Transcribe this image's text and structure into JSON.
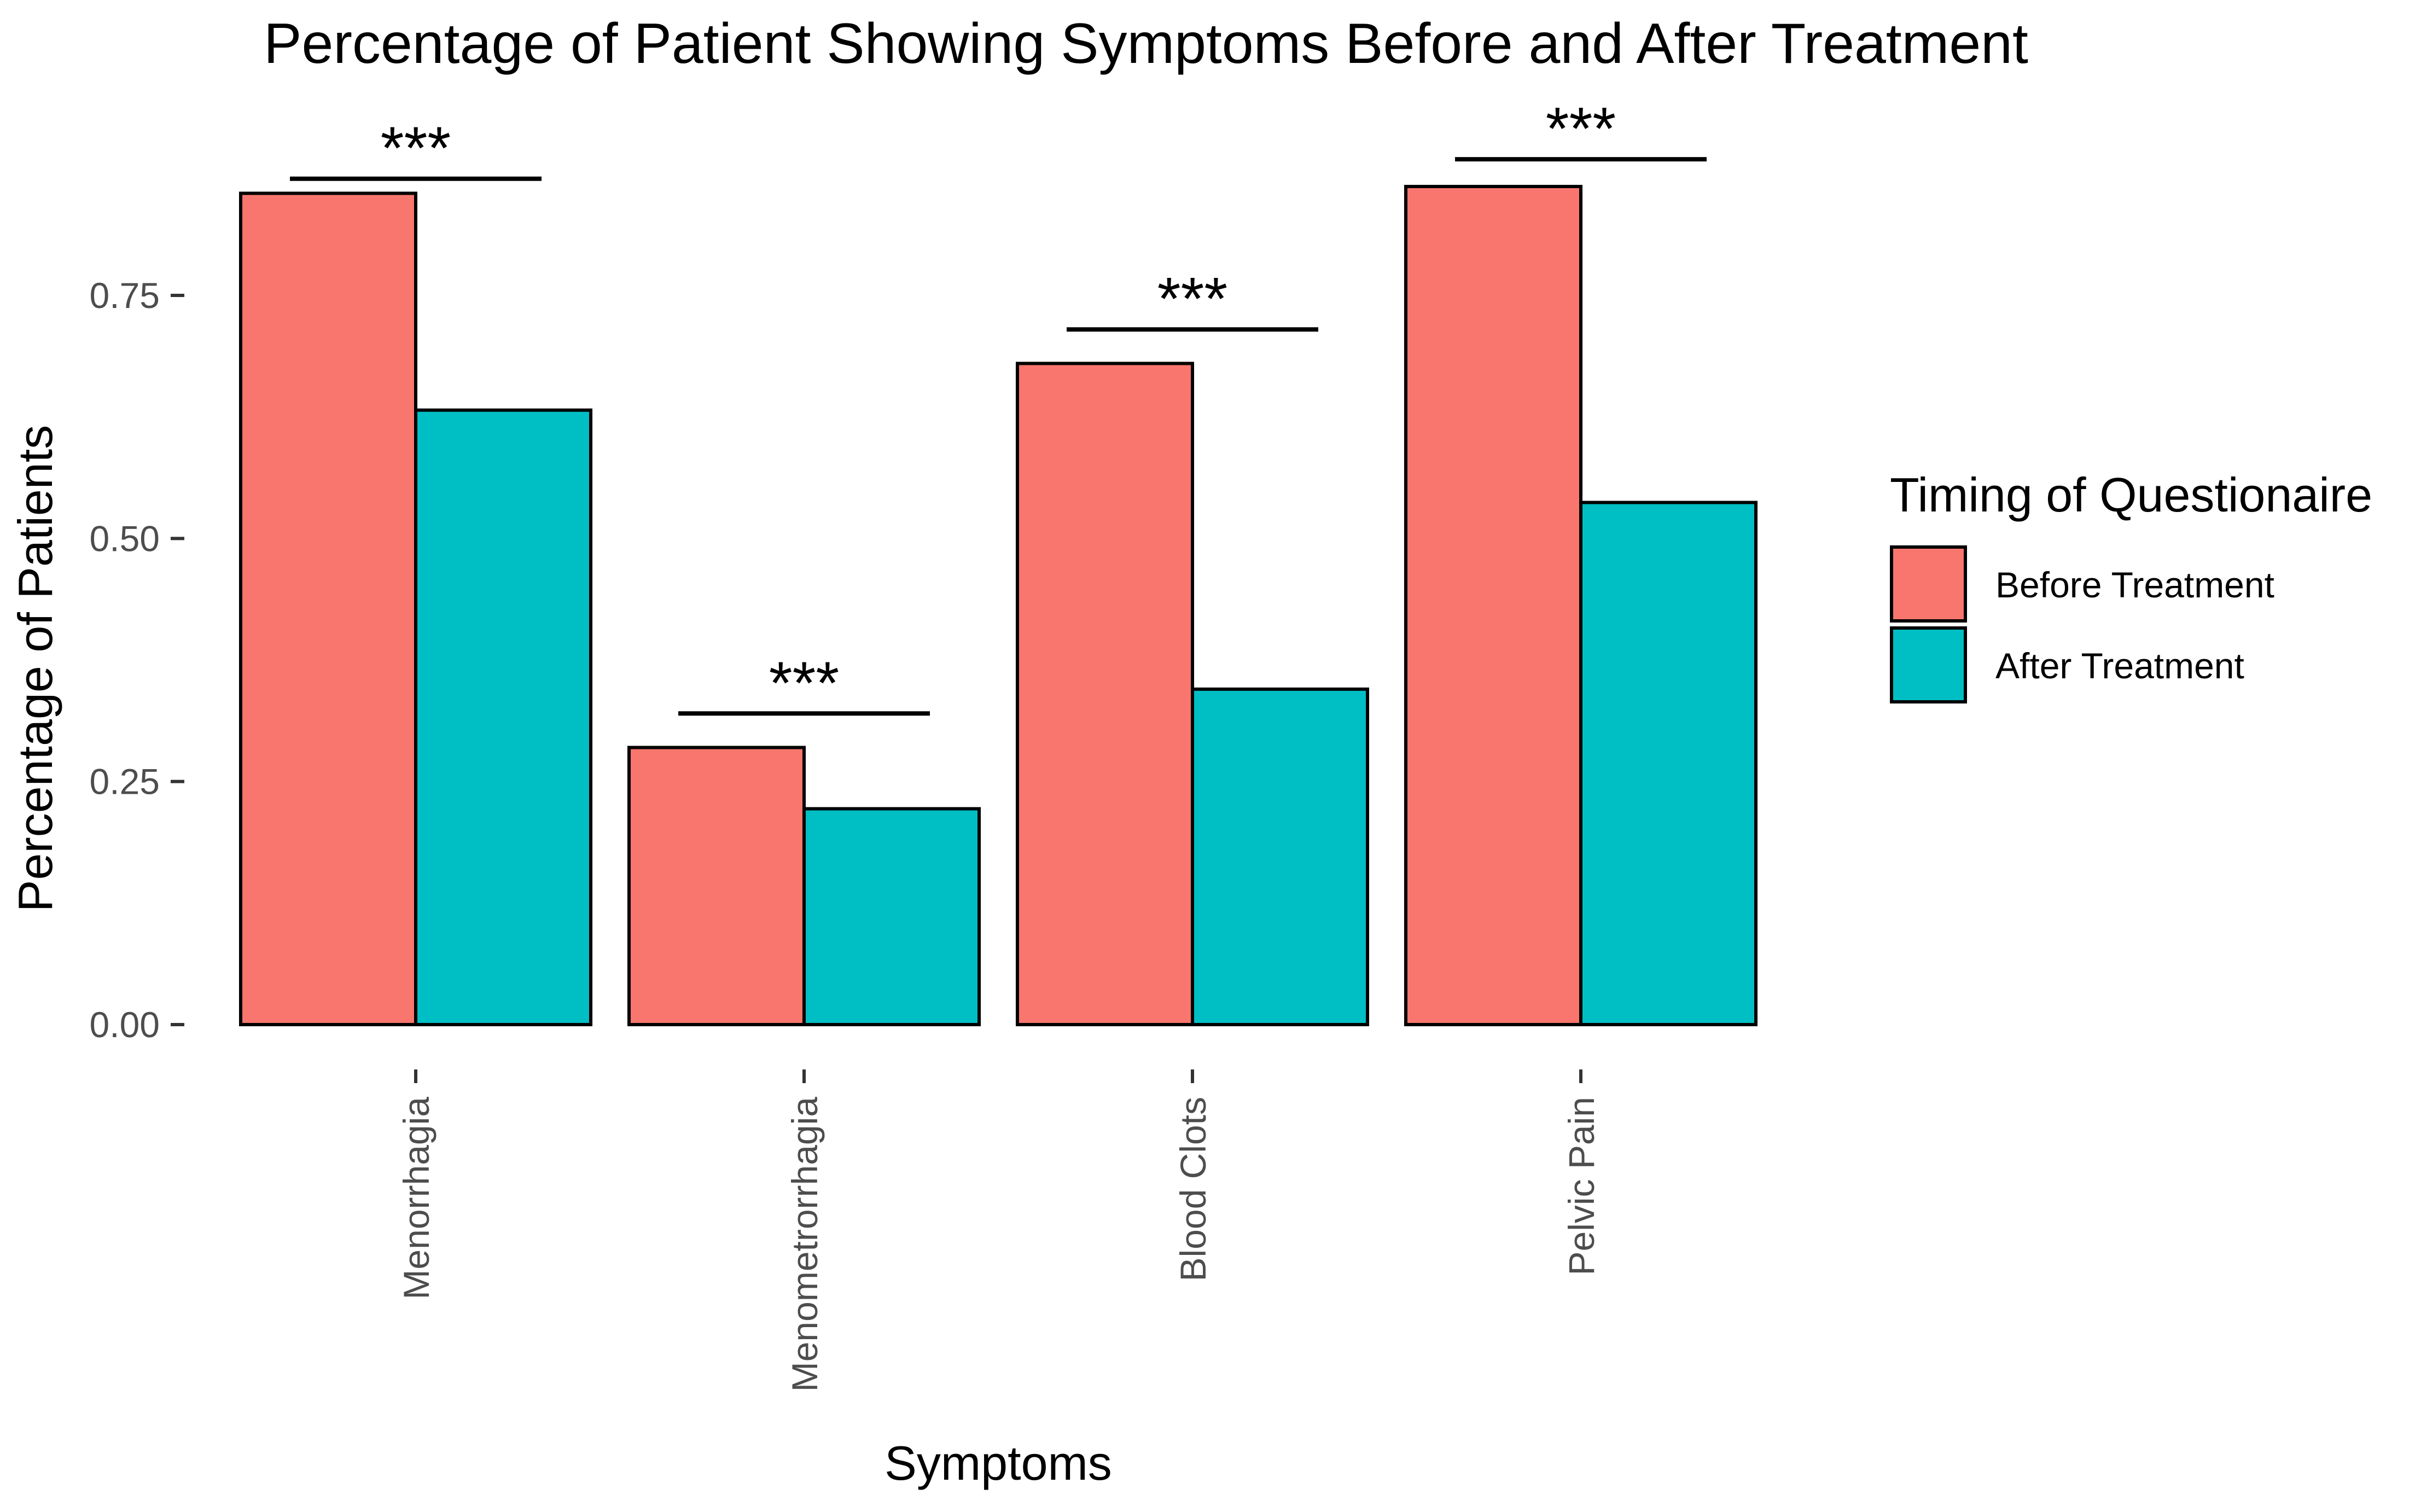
{
  "chart_data": {
    "type": "bar",
    "title": "Percentage of Patient Showing Symptoms Before and After Treatment",
    "xlabel": "Symptoms",
    "ylabel": "Percentage of Patients",
    "categories": [
      "Menorrhagia",
      "Menometrorrhagia",
      "Blood Clots",
      "Pelvic Pain"
    ],
    "series": [
      {
        "name": "Before Treatment",
        "color": "#F8766D",
        "values": [
          0.855,
          0.285,
          0.68,
          0.862
        ]
      },
      {
        "name": "After Treatment",
        "color": "#00BFC4",
        "values": [
          0.632,
          0.222,
          0.345,
          0.537
        ]
      }
    ],
    "ylim": [
      0,
      0.95
    ],
    "yticks": [
      0,
      0.25,
      0.5,
      0.75
    ],
    "ytick_labels": [
      "0.00",
      "0.25",
      "0.50",
      "0.75"
    ],
    "significance": [
      {
        "category": "Menorrhagia",
        "label": "***",
        "y": 0.87
      },
      {
        "category": "Menometrorrhagia",
        "label": "***",
        "y": 0.32
      },
      {
        "category": "Blood Clots",
        "label": "***",
        "y": 0.715
      },
      {
        "category": "Pelvic Pain",
        "label": "***",
        "y": 0.89
      }
    ],
    "legend": {
      "title": "Timing of Questionaire",
      "position": "right"
    },
    "grid": false
  }
}
